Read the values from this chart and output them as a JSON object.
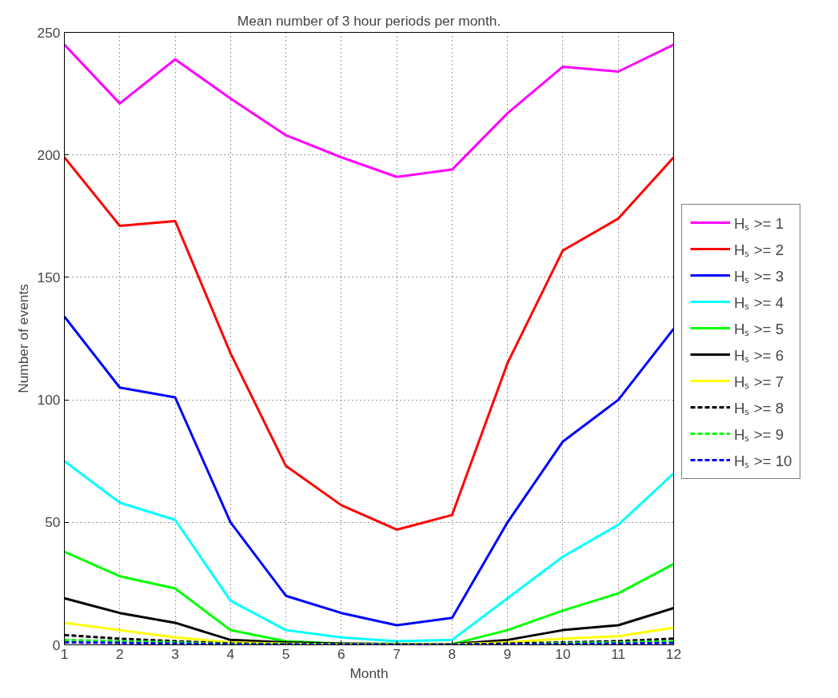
{
  "chart_data": {
    "type": "line",
    "title": "Mean number of 3 hour periods per month.",
    "xlabel": "Month",
    "ylabel": "Number of events",
    "x": [
      1,
      2,
      3,
      4,
      5,
      6,
      7,
      8,
      9,
      10,
      11,
      12
    ],
    "xlim": [
      1,
      12
    ],
    "xticks": [
      1,
      2,
      3,
      4,
      5,
      6,
      7,
      8,
      9,
      10,
      11,
      12
    ],
    "ylim": [
      0,
      250
    ],
    "yticks": [
      0,
      50,
      100,
      150,
      200,
      250
    ],
    "grid": true,
    "legend": "right",
    "series": [
      {
        "name": "Hₛ >= 1",
        "color": "#ff00ff",
        "line_style": "solid",
        "values": [
          245,
          221,
          239,
          223,
          208,
          199,
          191,
          194,
          217,
          236,
          234,
          245
        ]
      },
      {
        "name": "Hₛ >= 2",
        "color": "#ff0000",
        "line_style": "solid",
        "values": [
          199,
          171,
          173,
          119,
          73,
          57,
          47,
          53,
          115,
          161,
          174,
          199
        ]
      },
      {
        "name": "Hₛ >= 3",
        "color": "#0000ff",
        "line_style": "solid",
        "values": [
          134,
          105,
          101,
          50,
          20,
          13,
          8,
          11,
          50,
          83,
          100,
          129
        ]
      },
      {
        "name": "Hₛ >= 4",
        "color": "#00ffff",
        "line_style": "solid",
        "values": [
          75,
          58,
          51,
          18,
          6,
          3,
          1.5,
          2,
          19,
          36,
          49,
          70
        ]
      },
      {
        "name": "Hₛ >= 5",
        "color": "#00ff00",
        "line_style": "solid",
        "values": [
          38,
          28,
          23,
          6,
          1.5,
          0.5,
          0.3,
          0.3,
          6,
          14,
          21,
          33
        ]
      },
      {
        "name": "Hₛ >= 6",
        "color": "#000000",
        "line_style": "solid",
        "values": [
          19,
          13,
          9,
          2,
          1,
          0.5,
          0.3,
          0.3,
          2,
          6,
          8,
          15
        ]
      },
      {
        "name": "Hₛ >= 7",
        "color": "#ffff00",
        "line_style": "solid",
        "values": [
          9,
          6,
          3,
          1,
          0.5,
          0.2,
          0.2,
          0.2,
          1,
          2.5,
          3.5,
          7
        ]
      },
      {
        "name": "Hₛ >= 8",
        "color": "#000000",
        "line_style": "dashed",
        "values": [
          4,
          2.5,
          1.5,
          0.5,
          0.3,
          0.2,
          0.1,
          0.1,
          0.5,
          1,
          1.5,
          2.5
        ]
      },
      {
        "name": "Hₛ >= 9",
        "color": "#00ff00",
        "line_style": "dashed",
        "values": [
          2,
          1.5,
          1,
          0.3,
          0.2,
          0.1,
          0.1,
          0.1,
          null,
          0.7,
          1,
          1.5
        ]
      },
      {
        "name": "Hₛ >= 10",
        "color": "#0000ff",
        "line_style": "dashed",
        "values": [
          1,
          0.8,
          0.5,
          0.2,
          0.1,
          0.1,
          0,
          0,
          0.2,
          0.3,
          0.5,
          0.8
        ]
      }
    ]
  }
}
